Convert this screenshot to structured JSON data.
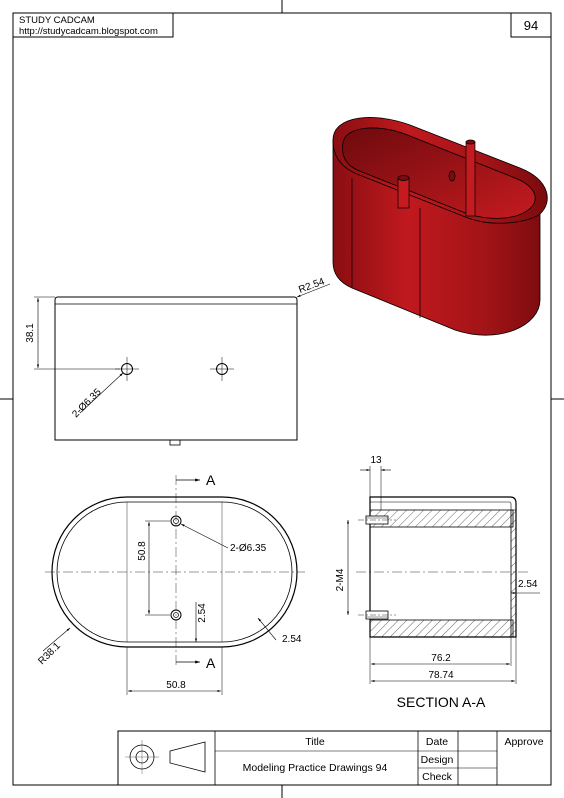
{
  "header": {
    "brand": "STUDY CADCAM",
    "url": "http://studycadcam.blogspot.com",
    "sheet_number": "94"
  },
  "colors": {
    "line": "#000000",
    "model_red": "#b3161b",
    "model_red_dark": "#7a0b0e",
    "model_red_light": "#d8393a"
  },
  "front_view": {
    "dim_height": "38.1",
    "dim_radius": "R2.54",
    "dim_holes": "2-Ø6.35"
  },
  "top_view": {
    "section_marker": "A",
    "dim_hole_spacing": "50.8",
    "dim_holes": "2-Ø6.35",
    "dim_offset": "2.54",
    "dim_wall": "2.54",
    "dim_radius": "R38.1",
    "dim_width": "50.8"
  },
  "section_view": {
    "dim_boss": "13",
    "dim_thread": "2-M4",
    "dim_bottom": "2.54",
    "dim_inner": "76.2",
    "dim_outer": "78.74",
    "title": "SECTION A-A"
  },
  "title_block": {
    "title_label": "Title",
    "title_value": "Modeling Practice Drawings 94",
    "date_label": "Date",
    "design_label": "Design",
    "check_label": "Check",
    "approve_label": "Approve"
  }
}
